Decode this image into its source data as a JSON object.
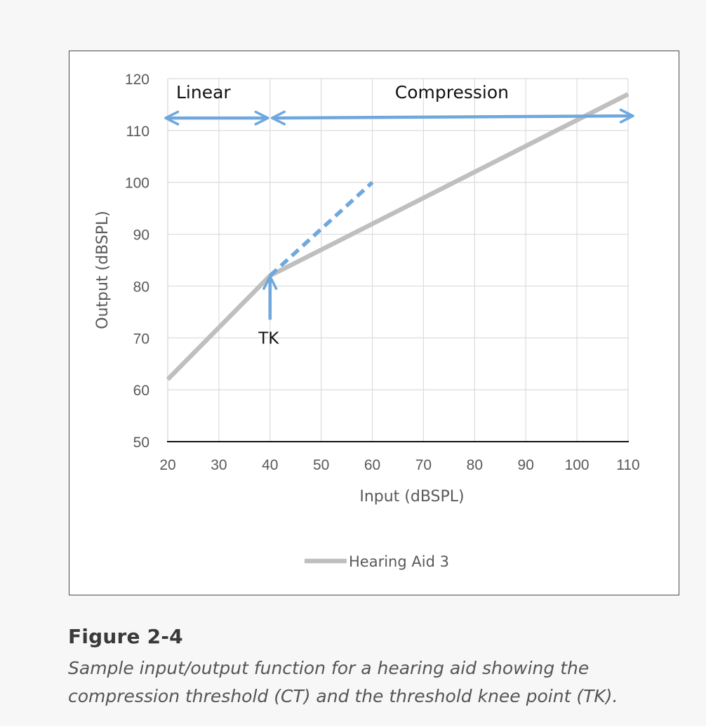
{
  "chart_data": {
    "type": "line",
    "xlabel": "Input (dBSPL)",
    "ylabel": "Output (dBSPL)",
    "xlim": [
      20,
      110
    ],
    "ylim": [
      50,
      120
    ],
    "x_ticks": [
      "20",
      "30",
      "40",
      "50",
      "60",
      "70",
      "80",
      "90",
      "100",
      "110"
    ],
    "y_ticks": [
      "120",
      "110",
      "100",
      "90",
      "80",
      "70",
      "60",
      "50"
    ],
    "grid": true,
    "legend_position": "bottom",
    "series": [
      {
        "name": "Hearing Aid 3",
        "color": "#bfbfbf",
        "points": [
          [
            20,
            62
          ],
          [
            40,
            82
          ],
          [
            110,
            117
          ]
        ]
      }
    ],
    "reference_line": {
      "style": "dashed",
      "color": "#6fa8dc",
      "points": [
        [
          40,
          82
        ],
        [
          60,
          100
        ]
      ]
    },
    "region_arrows": [
      {
        "label": "Linear",
        "from": 20,
        "to": 40,
        "y": 112
      },
      {
        "label": "Compression",
        "from": 40,
        "to": 110,
        "y": 112
      }
    ],
    "knee_annotation": {
      "label": "TK",
      "x": 40,
      "y_from": 73.5,
      "y_to": 82
    },
    "accent_color": "#6fa8dc"
  },
  "figure": {
    "title": "Figure 2-4",
    "caption_line1": "Sample input/output function for a hearing aid showing the",
    "caption_line2": "compression threshold (CT) and the threshold knee point (TK)."
  }
}
